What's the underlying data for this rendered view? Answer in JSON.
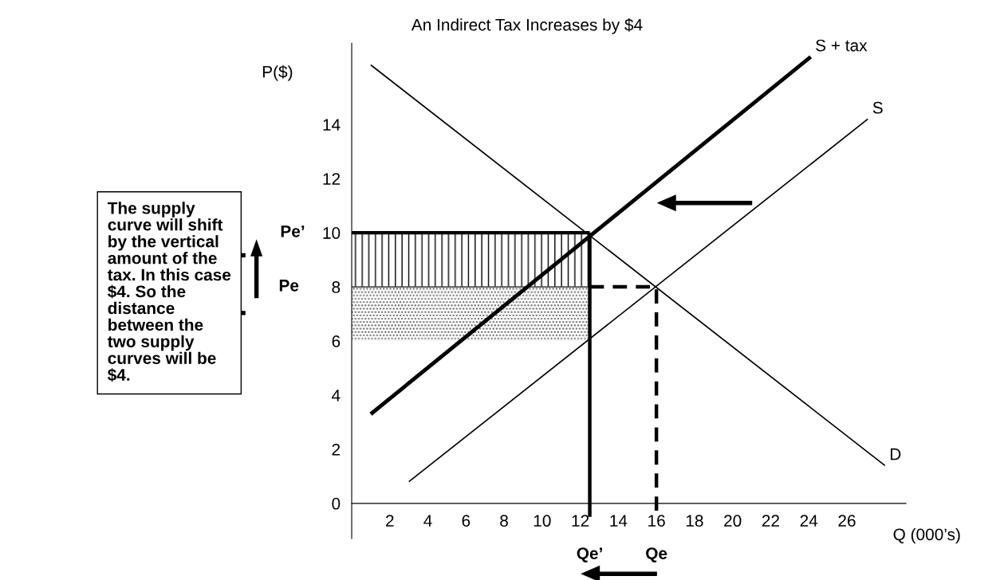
{
  "chart_data": {
    "type": "line",
    "title": "An Indirect Tax Increases by $4",
    "xlabel": "Q (000’s)",
    "ylabel": "P($)",
    "xlim": [
      0,
      29.1
    ],
    "ylim": [
      -1.3,
      17
    ],
    "xticks": [
      2,
      4,
      6,
      8,
      10,
      12,
      14,
      16,
      18,
      20,
      22,
      24,
      26
    ],
    "yticks": [
      0,
      2,
      4,
      6,
      8,
      10,
      12,
      14
    ],
    "grid": false,
    "legend": false,
    "marker": "none",
    "series": [
      {
        "color": "#000000",
        "x": [
          0,
          12.5
        ],
        "values": [
          10,
          10
        ],
        "lower": [
          8,
          8
        ],
        "upper": [
          10,
          10
        ],
        "line_style": "solid"
      },
      {
        "color": "#555555",
        "x": [
          0,
          12.5
        ],
        "values": [
          8,
          8
        ],
        "lower": [
          6,
          6
        ],
        "upper": [
          8,
          8
        ]
      },
      {
        "name": "D",
        "color": "#000000",
        "x": [
          1,
          28
        ],
        "values": [
          16.2,
          1.4
        ]
      },
      {
        "name": "S",
        "color": "#000000",
        "x": [
          3,
          27.1
        ],
        "values": [
          0.8,
          14.2
        ]
      },
      {
        "name": "S + tax",
        "color": "#000000",
        "x": [
          1,
          24.1
        ],
        "values": [
          3.3,
          16.5
        ]
      },
      {
        "color": "#000000",
        "x": [
          12.5,
          12.5
        ],
        "values": [
          10,
          -0.5
        ],
        "line_style": "solid"
      },
      {
        "color": "#000000",
        "x": [
          12.5,
          16,
          16
        ],
        "values": [
          8,
          8,
          -0.4
        ],
        "line_style": "dashed"
      }
    ],
    "annotations": [
      "Pe’",
      "Pe",
      "Qe’",
      "Qe",
      "The supply\ncurve will shift\nby the vertical\namount of the\ntax. In this case\n$4. So the\ndistance\nbetween the\ntwo supply\ncurves will be\n$4."
    ]
  }
}
